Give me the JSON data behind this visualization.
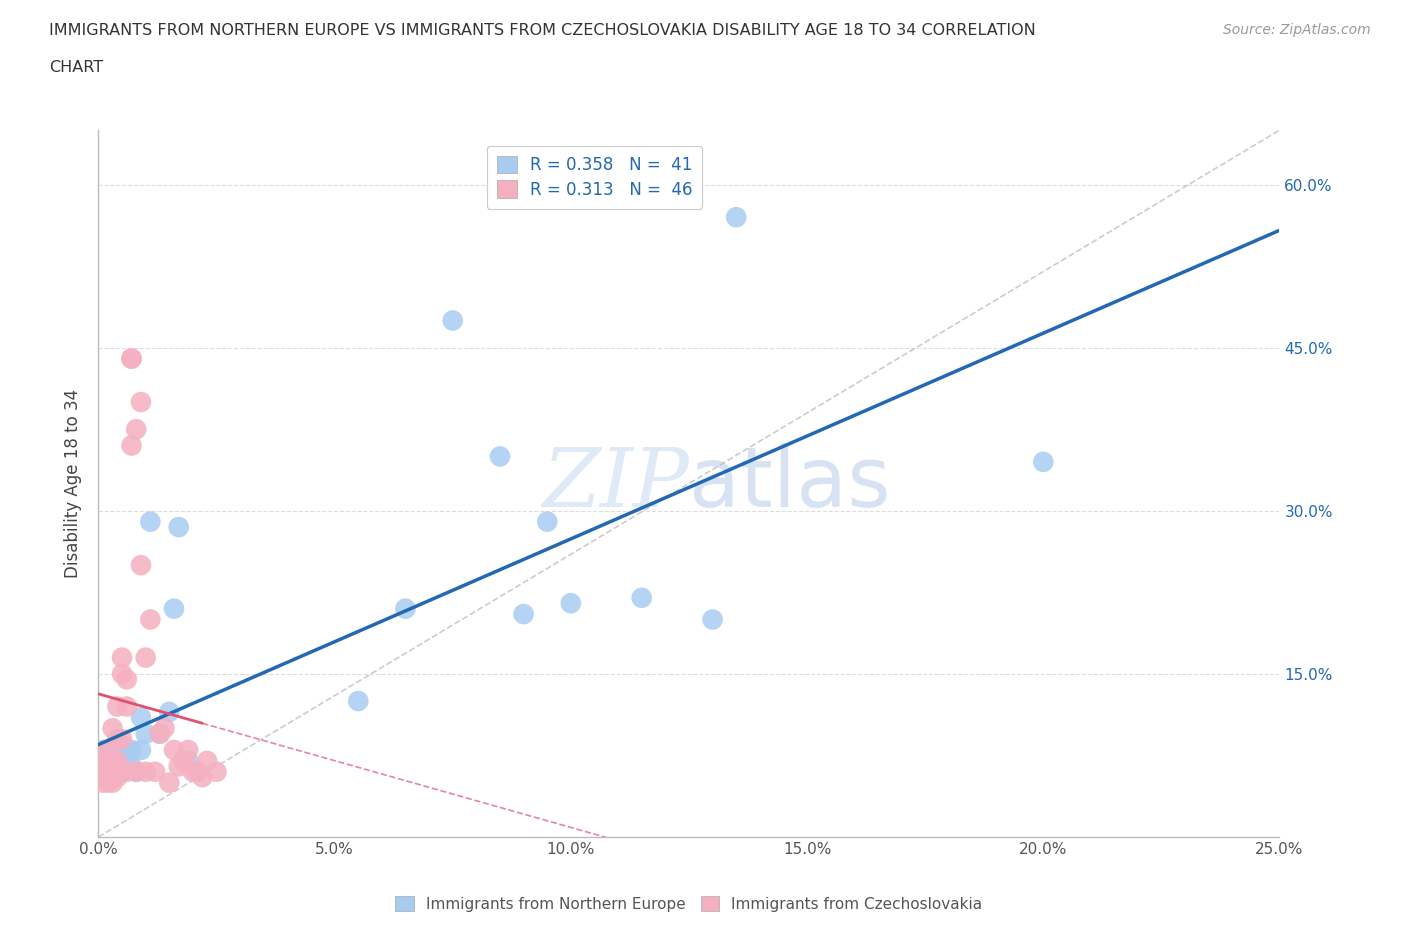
{
  "title_line1": "IMMIGRANTS FROM NORTHERN EUROPE VS IMMIGRANTS FROM CZECHOSLOVAKIA DISABILITY AGE 18 TO 34 CORRELATION",
  "title_line2": "CHART",
  "source": "Source: ZipAtlas.com",
  "ylabel": "Disability Age 18 to 34",
  "xlim": [
    0.0,
    0.25
  ],
  "ylim": [
    0.0,
    0.65
  ],
  "xtick_vals": [
    0.0,
    0.05,
    0.1,
    0.15,
    0.2,
    0.25
  ],
  "xtick_labels": [
    "0.0%",
    "5.0%",
    "10.0%",
    "15.0%",
    "20.0%",
    "25.0%"
  ],
  "ytick_vals": [
    0.0,
    0.15,
    0.3,
    0.45,
    0.6
  ],
  "ytick_labels_right": [
    "",
    "15.0%",
    "30.0%",
    "45.0%",
    "60.0%"
  ],
  "blue_R": 0.358,
  "blue_N": 41,
  "pink_R": 0.313,
  "pink_N": 46,
  "blue_color": "#A8CCF0",
  "pink_color": "#F5B0C0",
  "blue_line_color": "#2268B2",
  "pink_line_color": "#E05070",
  "ref_line_color": "#CCCCCC",
  "grid_color": "#DDDDDD",
  "watermark_color": "#DDEEFF",
  "legend_label_blue": "Immigrants from Northern Europe",
  "legend_label_pink": "Immigrants from Czechoslovakia",
  "blue_x": [
    0.0005,
    0.001,
    0.001,
    0.001,
    0.0015,
    0.002,
    0.002,
    0.003,
    0.003,
    0.003,
    0.004,
    0.004,
    0.004,
    0.005,
    0.005,
    0.005,
    0.006,
    0.006,
    0.007,
    0.007,
    0.008,
    0.009,
    0.009,
    0.01,
    0.011,
    0.013,
    0.015,
    0.016,
    0.017,
    0.019,
    0.055,
    0.065,
    0.075,
    0.085,
    0.09,
    0.095,
    0.1,
    0.115,
    0.13,
    0.135,
    0.2
  ],
  "blue_y": [
    0.07,
    0.06,
    0.07,
    0.08,
    0.065,
    0.06,
    0.075,
    0.06,
    0.07,
    0.08,
    0.06,
    0.07,
    0.08,
    0.06,
    0.075,
    0.085,
    0.065,
    0.08,
    0.065,
    0.08,
    0.06,
    0.08,
    0.11,
    0.095,
    0.29,
    0.095,
    0.115,
    0.21,
    0.285,
    0.07,
    0.125,
    0.21,
    0.475,
    0.35,
    0.205,
    0.29,
    0.215,
    0.22,
    0.2,
    0.57,
    0.345
  ],
  "pink_x": [
    0.001,
    0.001,
    0.001,
    0.001,
    0.002,
    0.002,
    0.002,
    0.002,
    0.003,
    0.003,
    0.003,
    0.003,
    0.004,
    0.004,
    0.004,
    0.004,
    0.005,
    0.005,
    0.005,
    0.005,
    0.006,
    0.006,
    0.006,
    0.007,
    0.007,
    0.007,
    0.008,
    0.008,
    0.009,
    0.009,
    0.01,
    0.01,
    0.011,
    0.012,
    0.013,
    0.014,
    0.015,
    0.016,
    0.017,
    0.018,
    0.019,
    0.02,
    0.021,
    0.022,
    0.023,
    0.025
  ],
  "pink_y": [
    0.05,
    0.055,
    0.065,
    0.075,
    0.05,
    0.06,
    0.07,
    0.08,
    0.05,
    0.06,
    0.07,
    0.1,
    0.055,
    0.07,
    0.09,
    0.12,
    0.06,
    0.09,
    0.15,
    0.165,
    0.06,
    0.12,
    0.145,
    0.36,
    0.44,
    0.44,
    0.06,
    0.375,
    0.4,
    0.25,
    0.06,
    0.165,
    0.2,
    0.06,
    0.095,
    0.1,
    0.05,
    0.08,
    0.065,
    0.07,
    0.08,
    0.06,
    0.06,
    0.055,
    0.07,
    0.06
  ]
}
